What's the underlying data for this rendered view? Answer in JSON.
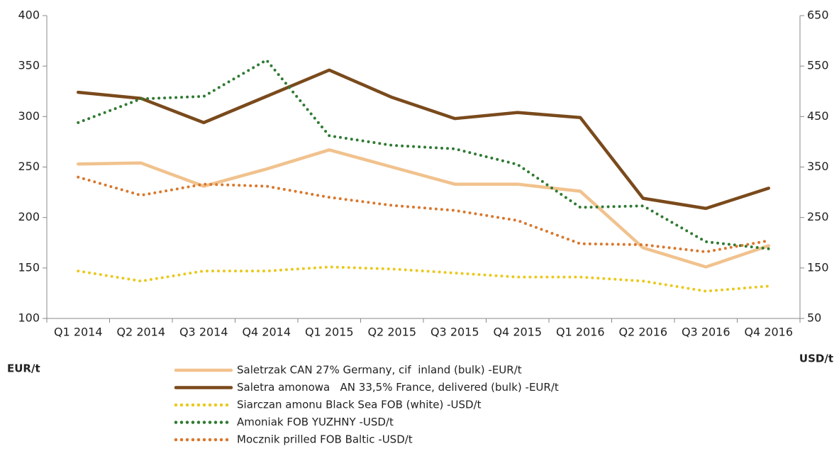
{
  "chart_data": {
    "type": "line",
    "categories": [
      "Q1 2014",
      "Q2 2014",
      "Q3 2014",
      "Q4 2014",
      "Q1 2015",
      "Q2 2015",
      "Q3 2015",
      "Q4 2015",
      "Q1 2016",
      "Q2 2016",
      "Q3 2016",
      "Q4 2016"
    ],
    "y_label": "EUR/t",
    "y2_label": "USD/t",
    "ylim": [
      100,
      400
    ],
    "yticks": [
      100,
      150,
      200,
      250,
      300,
      350,
      400
    ],
    "y2lim": [
      50,
      650
    ],
    "y2ticks": [
      50,
      150,
      250,
      350,
      450,
      550,
      650
    ],
    "series": [
      {
        "name": "Saletrzak CAN 27% Germany, cif  inland (bulk) -EUR/t",
        "color": "#f1c28e",
        "style": "solid",
        "axis": "y",
        "values": [
          253,
          254,
          231,
          248,
          267,
          250,
          233,
          233,
          226,
          170,
          151,
          172
        ]
      },
      {
        "name": "Saletra amonowa   AN 33,5% France, delivered (bulk) -EUR/t",
        "color": "#7a4a1c",
        "style": "solid",
        "axis": "y",
        "values": [
          324,
          318,
          294,
          320,
          346,
          319,
          298,
          304,
          299,
          219,
          209,
          229
        ]
      },
      {
        "name": "Siarczan amonu Black Sea FOB (white) -USD/t",
        "color": "#eac91e",
        "style": "dotted",
        "axis": "y2",
        "values": [
          144,
          124,
          144,
          144,
          152,
          148,
          140,
          132,
          132,
          124,
          104,
          114
        ]
      },
      {
        "name": "Amoniak FOB YUZHNY -USD/t",
        "color": "#2f7a33",
        "style": "dotted",
        "axis": "y2",
        "values": [
          438,
          485,
          490,
          562,
          412,
          393,
          386,
          355,
          270,
          273,
          202,
          188
        ]
      },
      {
        "name": "Mocznik prilled FOB Baltic -USD/t",
        "color": "#d9772c",
        "style": "dotted",
        "axis": "y2",
        "values": [
          330,
          294,
          316,
          312,
          290,
          274,
          264,
          244,
          198,
          196,
          182,
          204
        ]
      }
    ]
  }
}
